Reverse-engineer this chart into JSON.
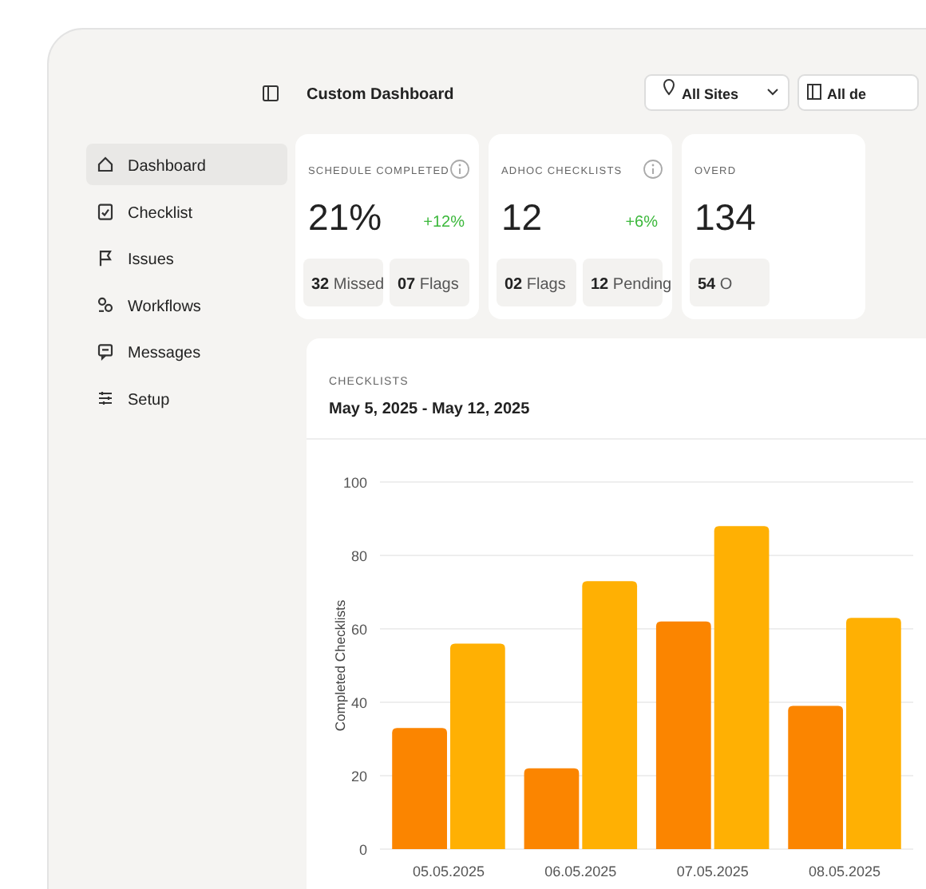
{
  "chart_data": [
    {
      "type": "other",
      "title": "Custom Dashboard",
      "annotations": [
        "Dashboard",
        "Checklist",
        "Issues",
        "Workflows",
        "Messages",
        "Setup",
        "All Sites",
        "All de",
        "SCHEDULE COMPLETED",
        "21%",
        "+12%",
        "32 Missed",
        "07 Flags",
        "ADHOC CHECKLISTS",
        "12",
        "+6%",
        "02 Flags",
        "12 Pending",
        "OVERD",
        "134",
        "54 O"
      ]
    },
    {
      "type": "bar",
      "title": "CHECKLISTS",
      "subtitle": "May 5, 2025 - May 12, 2025",
      "ylabel": "Completed Checklists",
      "categories": [
        "05.05.2025",
        "06.05.2025",
        "07.05.2025",
        "08.05.2025"
      ],
      "series": [
        {
          "color": "#fb8500",
          "values": [
            33,
            22,
            62,
            39
          ]
        },
        {
          "color": "#ffb003",
          "values": [
            56,
            73,
            88,
            63
          ]
        }
      ],
      "ylim": [
        0,
        100
      ],
      "yticks": [
        0,
        20,
        40,
        60,
        80,
        100
      ],
      "grid": "y"
    }
  ]
}
